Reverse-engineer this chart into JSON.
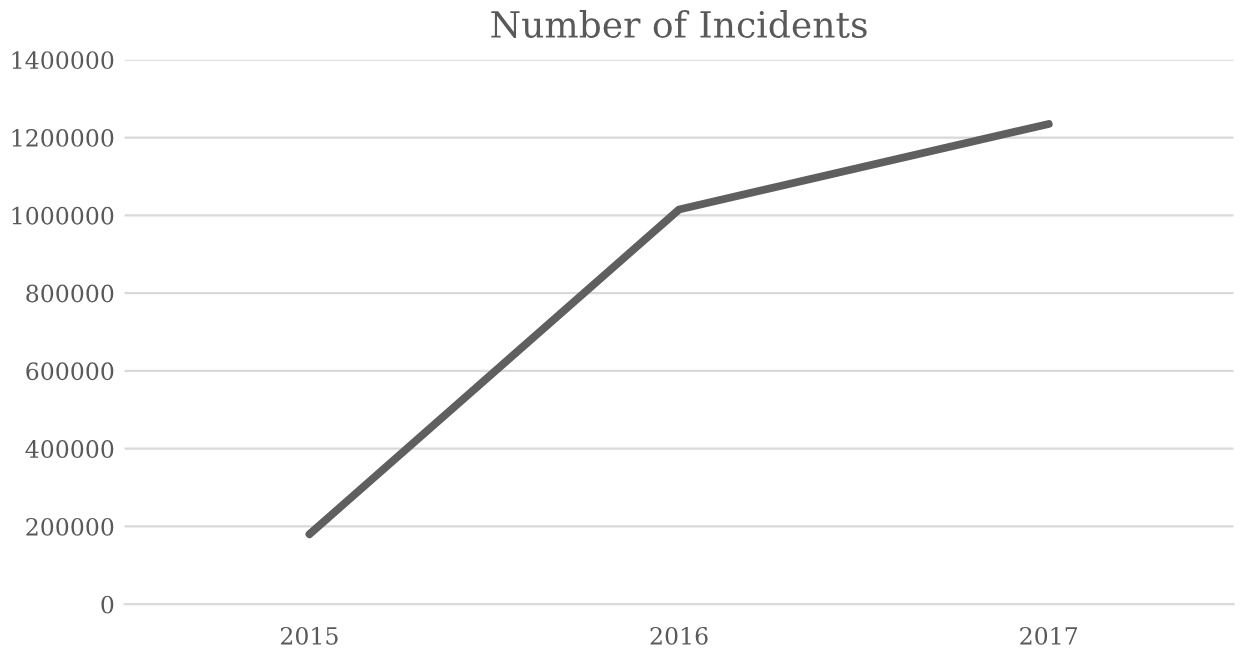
{
  "chart_data": {
    "type": "line",
    "title": "Number of Incidents",
    "categories": [
      "2015",
      "2016",
      "2017"
    ],
    "series": [
      {
        "color": "#5f5f5f",
        "values": [
          180000,
          1015000,
          1235000
        ]
      }
    ],
    "ylim": [
      0,
      1400000
    ],
    "yticks": [
      0,
      200000,
      400000,
      600000,
      800000,
      1000000,
      1200000,
      1400000
    ],
    "grid": "y",
    "marker": "none",
    "line_style": "solid"
  }
}
